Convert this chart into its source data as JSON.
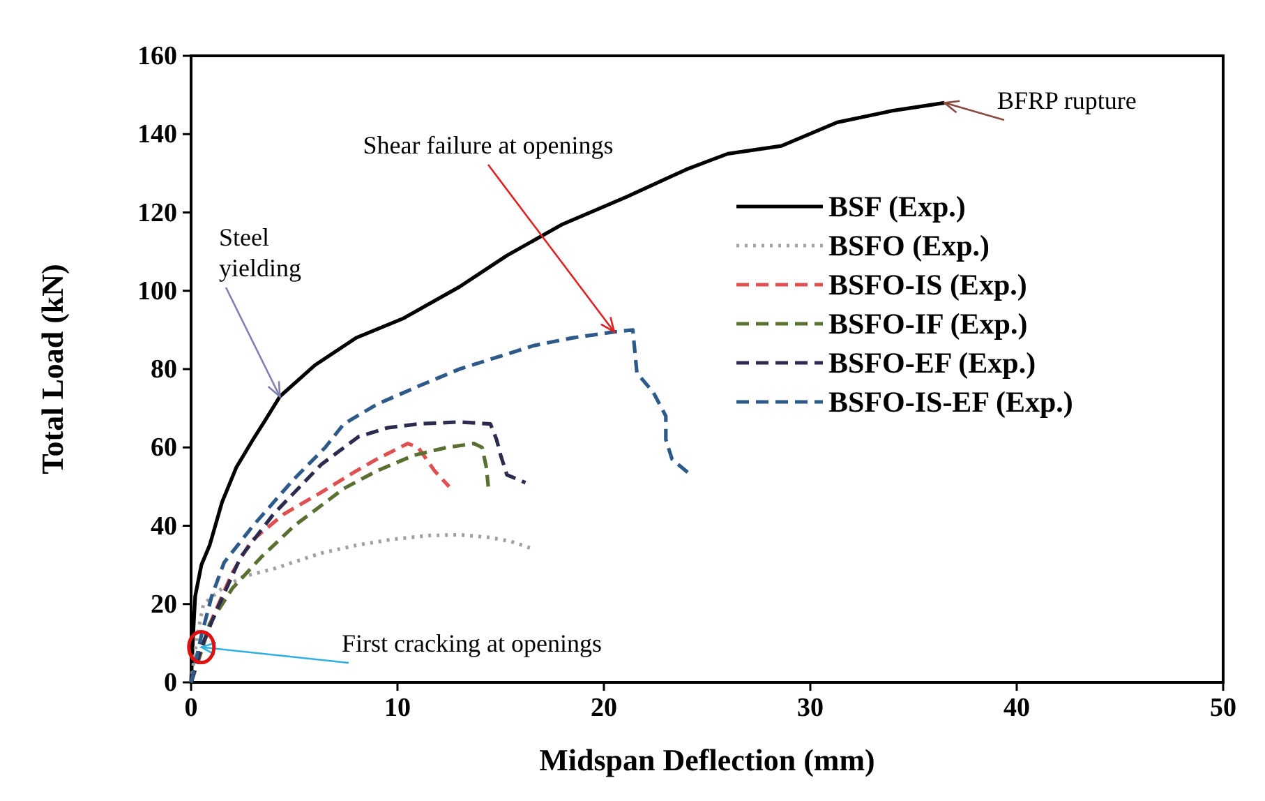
{
  "chart_data": {
    "type": "line",
    "xlabel": "Midspan Deflection (mm)",
    "ylabel": "Total Load (kN)",
    "xlim": [
      0,
      50
    ],
    "xticks": [
      0,
      10,
      20,
      30,
      40,
      50
    ],
    "ylim": [
      0,
      160
    ],
    "yticks": [
      0,
      20,
      40,
      60,
      80,
      100,
      120,
      140,
      160
    ],
    "grid": false,
    "legend": "right",
    "marker": "none",
    "series": [
      {
        "name": "BSF (Exp.)",
        "color": "#000000",
        "line_style": "solid",
        "x": [
          0,
          0.1,
          0.2,
          0.5,
          0.9,
          1.5,
          2.2,
          3,
          3.6,
          4.3,
          6,
          8,
          10.3,
          13,
          15.3,
          18,
          21.1,
          24,
          26,
          28.6,
          31.3,
          34,
          36.5
        ],
        "values": [
          0,
          12,
          22,
          30,
          35,
          46,
          55,
          62,
          67,
          73,
          81,
          88,
          93,
          101,
          109,
          117,
          124,
          131,
          135,
          137,
          143,
          146,
          148
        ]
      },
      {
        "name": "BSFO (Exp.)",
        "color": "#a0a0a0",
        "line_style": "dotted",
        "x": [
          0,
          0.3,
          0.6,
          1.5,
          2.5,
          4,
          6.3,
          8,
          9.7,
          11.5,
          13,
          14.5,
          15.5,
          16.6
        ],
        "values": [
          0,
          12,
          20,
          24,
          27,
          29,
          33,
          35,
          36.5,
          37.5,
          37.7,
          37,
          36,
          34
        ]
      },
      {
        "name": "BSFO-IS (Exp.)",
        "color": "#e05050",
        "line_style": "dashed",
        "x": [
          0,
          0.5,
          1,
          2,
          2.9,
          4.5,
          6.3,
          8,
          9,
          10.5,
          11,
          11.8,
          12.5
        ],
        "values": [
          0,
          8,
          16,
          28,
          36,
          43,
          48.5,
          54,
          57,
          61,
          60,
          54,
          50
        ]
      },
      {
        "name": "BSFO-IF (Exp.)",
        "color": "#5a7030",
        "line_style": "dashed",
        "x": [
          0,
          0.5,
          0.9,
          2,
          3.4,
          5,
          7.4,
          9,
          10.8,
          12.4,
          13.7,
          14.1,
          14.3,
          14.4
        ],
        "values": [
          0,
          8,
          15,
          24,
          32,
          40,
          49.5,
          54,
          58,
          60,
          61,
          60,
          55,
          50
        ]
      },
      {
        "name": "BSFO-EF (Exp.)",
        "color": "#2b2b50",
        "line_style": "dashed",
        "x": [
          0,
          0.5,
          1.2,
          2.4,
          4,
          6.3,
          8.1,
          9.5,
          11,
          13,
          14.5,
          14.8,
          15,
          15.3,
          16.2
        ],
        "values": [
          0,
          9,
          18,
          32,
          43,
          55.6,
          62.7,
          65,
          66,
          66.5,
          66,
          62,
          58,
          53,
          51
        ]
      },
      {
        "name": "BSFO-IS-EF (Exp.)",
        "color": "#2e5a8a",
        "line_style": "dashed",
        "x": [
          0,
          0.5,
          1,
          1.6,
          3,
          5,
          6.5,
          7.4,
          9,
          11,
          13,
          16.6,
          18.5,
          20.5,
          21.4,
          21.5,
          21.6,
          22.4,
          23,
          23,
          23.3,
          24.2
        ],
        "values": [
          0,
          12,
          22,
          30.6,
          40,
          52,
          60,
          66,
          71,
          75.6,
          80,
          86,
          88,
          89.5,
          90,
          84.5,
          79,
          74,
          68,
          62,
          57,
          53
        ]
      }
    ],
    "annotations": [
      {
        "text": "Shear failure at openings",
        "x": 20.5,
        "y": 89.5
      },
      {
        "text": "BFRP rupture",
        "x": 36.5,
        "y": 148
      },
      {
        "text": "Steel yielding",
        "x": 4.3,
        "y": 73
      },
      {
        "text": "First cracking at openings",
        "x": 0.5,
        "y": 9
      }
    ]
  }
}
